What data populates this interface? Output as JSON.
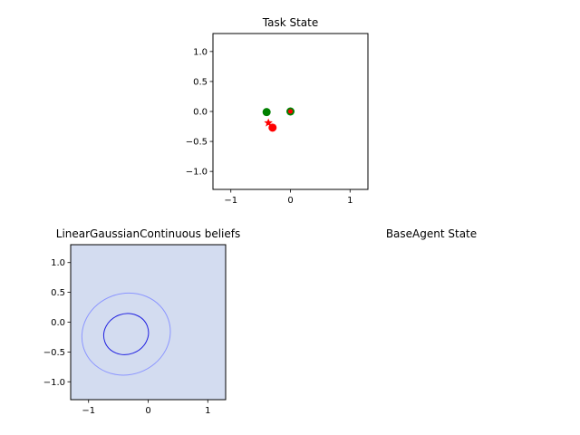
{
  "chart_data": [
    {
      "type": "scatter",
      "title": "Task State",
      "xlim": [
        -1.3,
        1.3
      ],
      "ylim": [
        -1.3,
        1.3
      ],
      "xticks": [
        -1,
        0,
        1
      ],
      "xtick_labels": [
        "−1",
        "0",
        "1"
      ],
      "yticks": [
        1.0,
        0.5,
        0.0,
        -0.5,
        -1.0
      ],
      "ytick_labels": [
        "1.0",
        "0.5",
        "0.0",
        "−0.5",
        "−1.0"
      ],
      "grid": false,
      "points": [
        {
          "x": -0.4,
          "y": -0.01,
          "color": "#008000",
          "marker": "circle"
        },
        {
          "x": 0.0,
          "y": 0.0,
          "color": "#008000",
          "marker": "circle"
        },
        {
          "x": 0.0,
          "y": 0.0,
          "color": "#ff0000",
          "marker": "small-circle"
        },
        {
          "x": -0.37,
          "y": -0.19,
          "color": "#ff0000",
          "marker": "star"
        },
        {
          "x": -0.3,
          "y": -0.27,
          "color": "#ff0000",
          "marker": "circle"
        }
      ]
    },
    {
      "type": "ellipse",
      "title": "LinearGaussianContinuous beliefs",
      "xlim": [
        -1.3,
        1.3
      ],
      "ylim": [
        -1.3,
        1.3
      ],
      "xticks": [
        -1,
        0,
        1
      ],
      "xtick_labels": [
        "−1",
        "0",
        "1"
      ],
      "yticks": [
        1.0,
        0.5,
        0.0,
        -0.5,
        -1.0
      ],
      "ytick_labels": [
        "1.0",
        "0.5",
        "0.0",
        "−0.5",
        "−1.0"
      ],
      "grid": false,
      "background": "#d3dcf0",
      "ellipses": [
        {
          "cx": -0.37,
          "cy": -0.2,
          "rx": 0.75,
          "ry": 0.68,
          "rotation": 20,
          "color": "#8c96ff"
        },
        {
          "cx": -0.37,
          "cy": -0.2,
          "rx": 0.38,
          "ry": 0.34,
          "rotation": 20,
          "color": "#2020e0"
        }
      ]
    }
  ],
  "agent_panel": {
    "title": "BaseAgent State"
  }
}
